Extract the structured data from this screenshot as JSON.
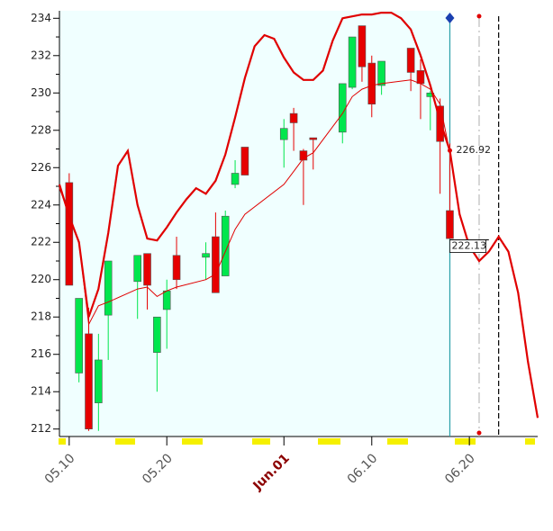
{
  "chart_data": {
    "type": "candlestick",
    "x": [
      "05.10",
      "05.11",
      "05.12",
      "05.13",
      "05.14",
      "05.17",
      "05.18",
      "05.19",
      "05.20",
      "05.21",
      "05.24",
      "05.25",
      "05.26",
      "05.27",
      "05.28",
      "06.01",
      "06.02",
      "06.03",
      "06.04",
      "06.07",
      "06.08",
      "06.09",
      "06.10",
      "06.11",
      "06.14",
      "06.15",
      "06.16",
      "06.17",
      "06.18"
    ],
    "open": [
      225.2,
      215.0,
      217.1,
      213.4,
      218.1,
      219.9,
      221.4,
      216.1,
      218.4,
      221.3,
      221.2,
      222.3,
      220.2,
      225.1,
      227.1,
      227.5,
      228.9,
      226.9,
      227.6,
      227.9,
      230.3,
      233.6,
      231.6,
      230.4,
      232.4,
      231.2,
      229.8,
      229.3,
      223.7
    ],
    "high": [
      225.7,
      219.0,
      218.5,
      217.1,
      221.0,
      221.3,
      221.4,
      218.0,
      220.0,
      222.3,
      222.0,
      223.6,
      223.7,
      226.4,
      227.1,
      228.6,
      229.2,
      227.0,
      227.6,
      230.5,
      233.0,
      233.6,
      232.0,
      231.7,
      232.4,
      231.8,
      230.1,
      229.7,
      227.3
    ],
    "low": [
      219.7,
      214.5,
      211.9,
      211.9,
      215.7,
      217.9,
      218.4,
      214.0,
      216.3,
      219.5,
      220.0,
      219.3,
      220.2,
      224.9,
      225.6,
      226.0,
      226.9,
      224.0,
      225.9,
      227.3,
      230.2,
      230.6,
      228.7,
      229.9,
      230.1,
      228.6,
      228.0,
      224.6,
      222.2
    ],
    "close": [
      219.7,
      219.0,
      212.0,
      215.7,
      221.0,
      221.3,
      219.7,
      218.0,
      219.4,
      220.0,
      221.4,
      219.3,
      223.4,
      225.7,
      225.6,
      228.1,
      228.4,
      226.4,
      227.5,
      230.5,
      233.0,
      231.4,
      229.4,
      231.7,
      231.1,
      230.5,
      230.0,
      227.4,
      222.2
    ],
    "up_color": "#00e64d",
    "down_color": "#e60000",
    "flat_color": "#444444",
    "lines": [
      {
        "color": "#e00000",
        "width": 2.2,
        "x": [
          "05.09",
          "05.10",
          "05.11",
          "05.12",
          "05.13",
          "05.14",
          "05.15",
          "05.16",
          "05.17",
          "05.18",
          "05.19",
          "05.20",
          "05.21",
          "05.22",
          "05.23",
          "05.24",
          "05.25",
          "05.26",
          "05.27",
          "05.28",
          "05.29",
          "05.30",
          "05.31",
          "06.01",
          "06.02",
          "06.03",
          "06.04",
          "06.05",
          "06.06",
          "06.07",
          "06.08",
          "06.09",
          "06.10",
          "06.11",
          "06.12",
          "06.13",
          "06.14",
          "06.15",
          "06.16",
          "06.17",
          "06.18",
          "06.19",
          "06.20",
          "06.21",
          "06.22",
          "06.23",
          "06.24",
          "06.25",
          "06.26",
          "06.27"
        ],
        "values": [
          225.1,
          223.4,
          222.0,
          218.0,
          219.5,
          222.5,
          226.1,
          226.9,
          224.0,
          222.2,
          222.1,
          222.8,
          223.6,
          224.3,
          224.9,
          224.6,
          225.3,
          226.7,
          228.7,
          230.8,
          232.5,
          233.1,
          232.9,
          231.9,
          231.1,
          230.7,
          230.7,
          231.2,
          232.8,
          234.0,
          234.1,
          234.2,
          234.2,
          234.3,
          234.3,
          234.0,
          233.4,
          232.0,
          230.4,
          228.5,
          226.9,
          223.5,
          221.8,
          221.0,
          221.5,
          222.3,
          221.5,
          219.3,
          215.6,
          212.6
        ]
      },
      {
        "color": "#e00000",
        "width": 1,
        "x": [
          "05.09",
          "05.10",
          "05.11",
          "05.12",
          "05.13",
          "05.14",
          "05.17",
          "05.18",
          "05.19",
          "05.20",
          "05.21",
          "05.24",
          "05.25",
          "05.26",
          "05.27",
          "05.28",
          "06.01",
          "06.02",
          "06.03",
          "06.04",
          "06.07",
          "06.08",
          "06.09",
          "06.10",
          "06.11",
          "06.14",
          "06.15",
          "06.16",
          "06.17",
          "06.18"
        ],
        "values": [
          224.9,
          223.5,
          222.0,
          217.6,
          218.6,
          218.8,
          219.5,
          219.6,
          219.1,
          219.4,
          219.6,
          220.0,
          220.3,
          221.5,
          222.7,
          223.5,
          225.1,
          225.8,
          226.5,
          226.8,
          228.9,
          229.8,
          230.2,
          230.4,
          230.5,
          230.7,
          230.5,
          230.2,
          229.4,
          226.8
        ]
      }
    ],
    "markers": [
      {
        "x": "06.18",
        "value": 226.92
      },
      {
        "x": "06.18",
        "value": 222.13,
        "to": "06.22"
      }
    ],
    "vlines": [
      {
        "x": "06.18",
        "color": "#2aa0a8"
      },
      {
        "x": "06.21",
        "color": "#bbbbbb"
      },
      {
        "x": "06.23",
        "color": "#000000"
      }
    ],
    "xlim": [
      "05.09",
      "06.27"
    ],
    "xticks": [
      "05.10",
      "05.20",
      {
        "value": "06.01",
        "label": "Jun.01"
      },
      "06.10",
      "06.20"
    ],
    "ylim": [
      211.6,
      234.4
    ],
    "yticks": [
      212,
      214,
      216,
      218,
      220,
      222,
      224,
      226,
      228,
      230,
      232,
      234
    ]
  }
}
